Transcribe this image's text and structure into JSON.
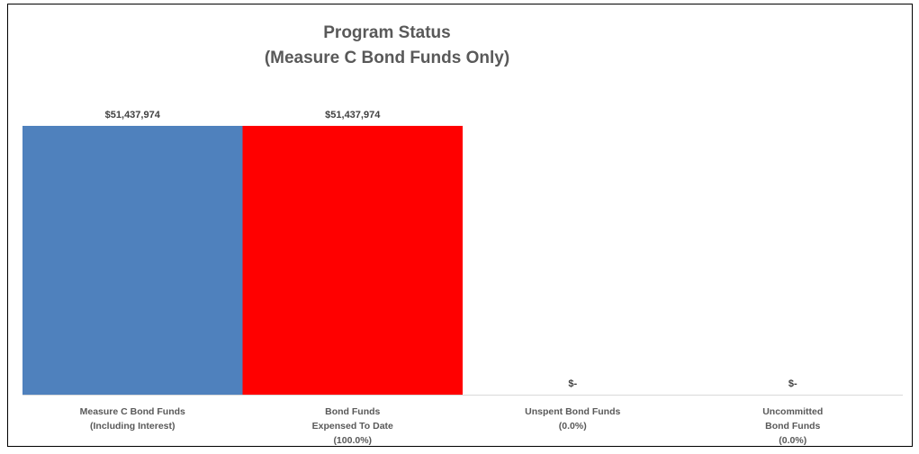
{
  "chart_data": {
    "type": "bar",
    "title": [
      "Program Status",
      "(Measure C Bond Funds Only)"
    ],
    "categories": [
      [
        "Measure C Bond Funds",
        "(Including Interest)"
      ],
      [
        "Bond Funds",
        "Expensed To Date",
        "(100.0%)"
      ],
      [
        "Unspent Bond Funds",
        "(0.0%)"
      ],
      [
        "Uncommitted",
        "Bond Funds",
        "(0.0%)"
      ]
    ],
    "values": [
      51437974,
      51437974,
      0,
      0
    ],
    "data_labels": [
      "$51,437,974",
      "$51,437,974",
      "$-",
      "$-"
    ],
    "colors": [
      "#4F81BD",
      "#FF0000",
      "#4F81BD",
      "#4F81BD"
    ],
    "ylim": [
      0,
      51437974
    ],
    "grid": false,
    "legend": "none",
    "xlabel": "",
    "ylabel": ""
  }
}
